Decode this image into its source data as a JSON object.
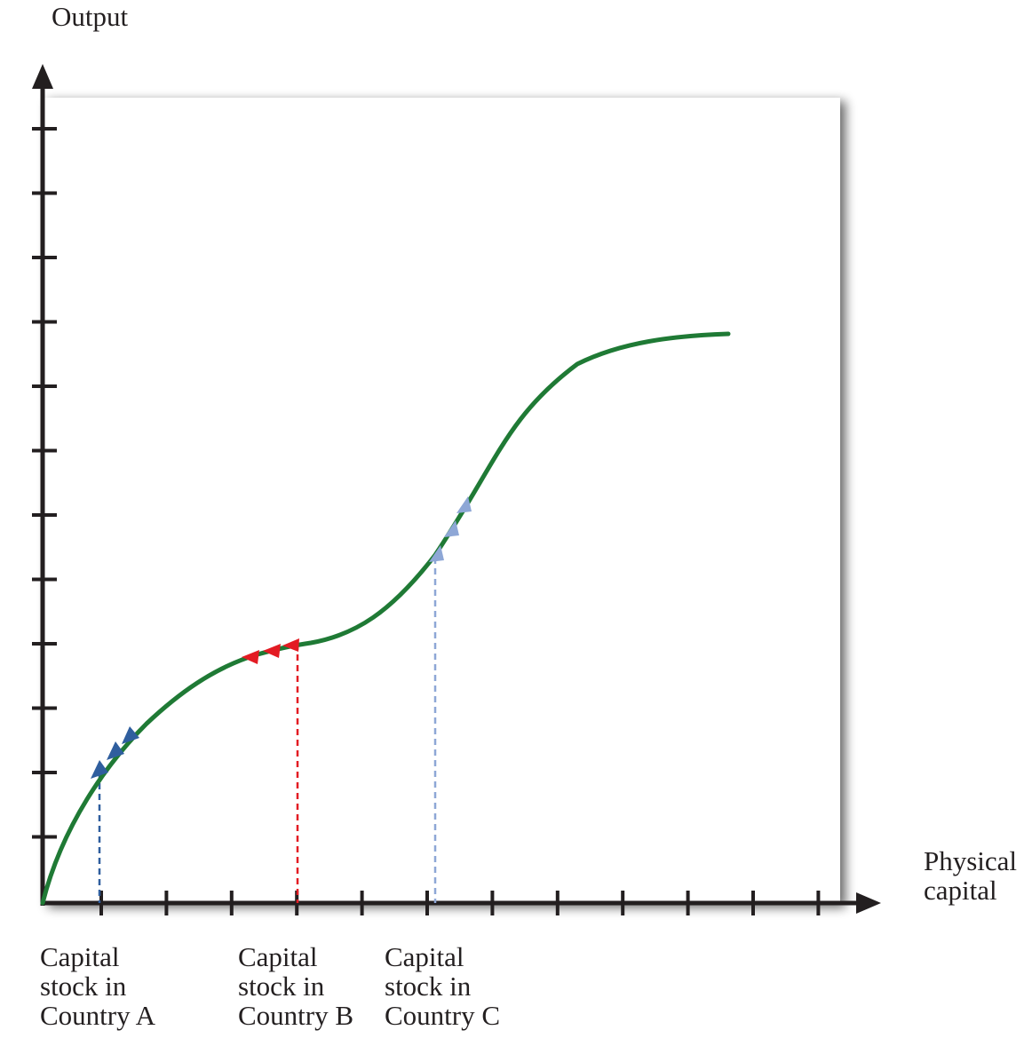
{
  "axes": {
    "y_label": "Output",
    "x_label_line1": "Physical",
    "x_label_line2": "capital"
  },
  "countries": [
    {
      "line1": "Capital",
      "line2": "stock in",
      "line3": "Country A"
    },
    {
      "line1": "Capital",
      "line2": "stock in",
      "line3": "Country B"
    },
    {
      "line1": "Capital",
      "line2": "stock in",
      "line3": "Country C"
    }
  ],
  "colors": {
    "curve": "#1f7a35",
    "country_a": "#2f5e9e",
    "country_b": "#e31b23",
    "country_c": "#8ea7d6",
    "axis": "#231f20"
  },
  "arrow_direction": {
    "country_a": "up-right",
    "country_b": "down-left",
    "country_c": "up-right"
  }
}
